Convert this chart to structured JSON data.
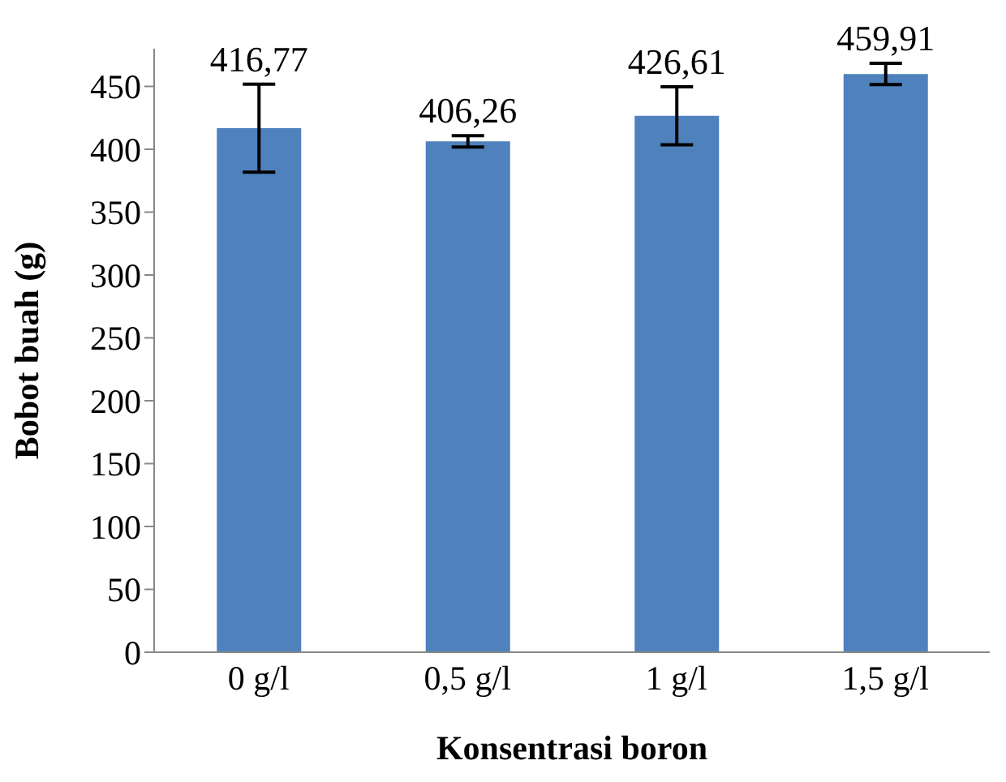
{
  "chart_data": {
    "type": "bar",
    "xlabel": "Konsentrasi boron",
    "ylabel": "Bobot buah (g)",
    "categories": [
      "0 g/l",
      "0,5 g/l",
      "1 g/l",
      "1,5 g/l"
    ],
    "values": [
      416.77,
      406.26,
      426.61,
      459.91
    ],
    "errors": [
      35,
      4.5,
      23,
      8.5
    ],
    "value_labels": [
      "416,77",
      "406,26",
      "426,61",
      "459,91"
    ],
    "color": "#4f81bd",
    "ylim": [
      0,
      480
    ],
    "yticks": [
      0,
      50,
      100,
      150,
      200,
      250,
      300,
      350,
      400,
      450
    ],
    "grid": false,
    "legend": false
  }
}
